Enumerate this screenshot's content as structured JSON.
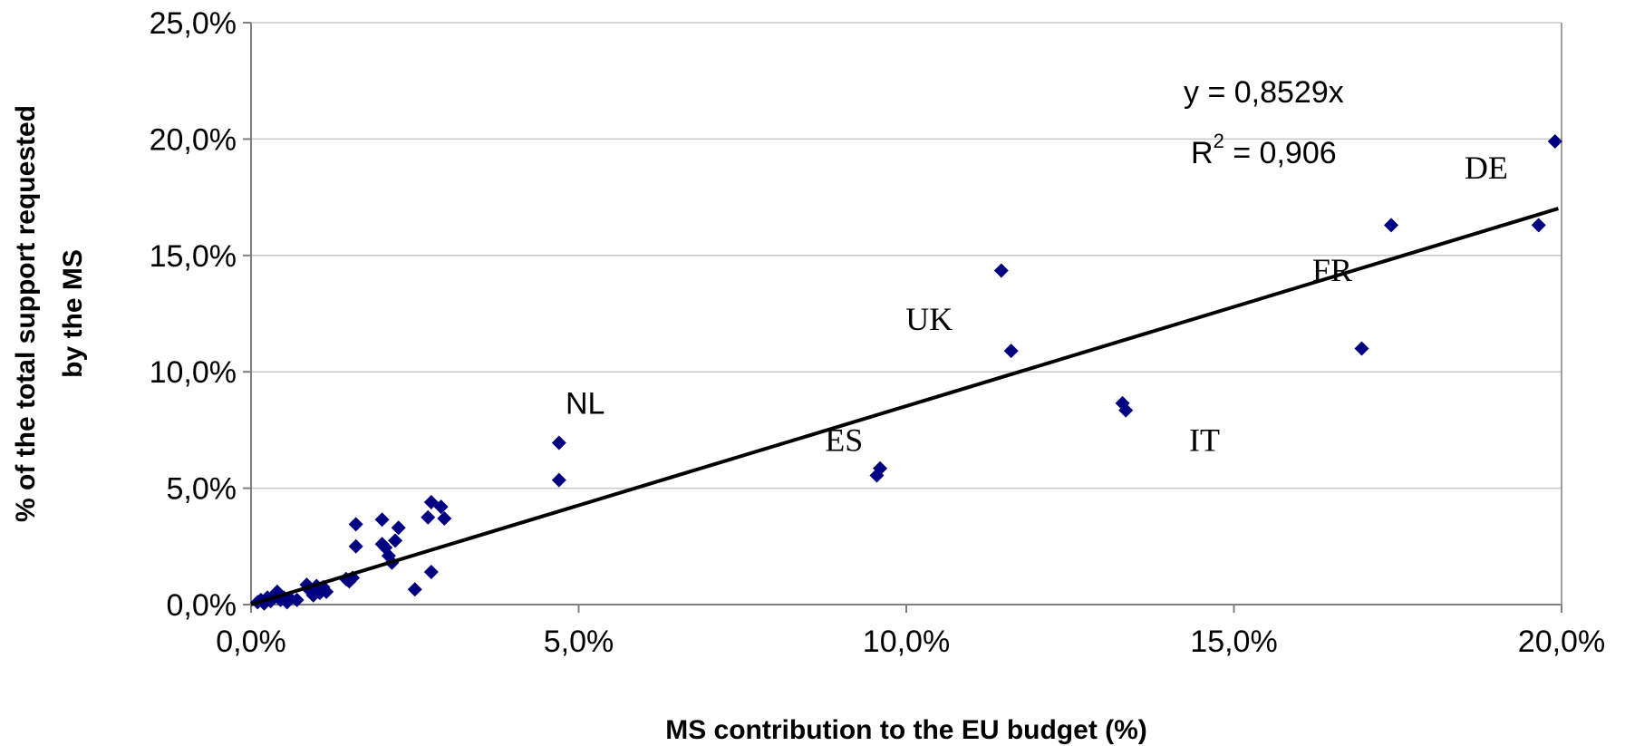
{
  "chart_data": {
    "type": "scatter",
    "title": "",
    "xlabel": "MS contribution to the EU budget (%)",
    "ylabel_lines": [
      "% of the  total support requested",
      "by the MS"
    ],
    "xlim": [
      0,
      20
    ],
    "ylim": [
      0,
      25
    ],
    "x_ticks": [
      {
        "value": 0,
        "label": "0,0%"
      },
      {
        "value": 5,
        "label": "5,0%"
      },
      {
        "value": 10,
        "label": "10,0%"
      },
      {
        "value": 15,
        "label": "15,0%"
      },
      {
        "value": 20,
        "label": "20,0%"
      }
    ],
    "y_ticks": [
      {
        "value": 0,
        "label": "0,0%"
      },
      {
        "value": 5,
        "label": "5,0%"
      },
      {
        "value": 10,
        "label": "10,0%"
      },
      {
        "value": 15,
        "label": "15,0%"
      },
      {
        "value": 20,
        "label": "20,0%"
      },
      {
        "value": 25,
        "label": "25,0%"
      }
    ],
    "grid": "horizontal",
    "marker_color": "#000080",
    "trendline": {
      "slope": 0.8529,
      "equation": "y = 0,8529x",
      "r2_prefix": "R",
      "r2_sup": "2",
      "r2_value": " = 0,906",
      "color": "#000000"
    },
    "points": [
      [
        0.1,
        0.1
      ],
      [
        0.15,
        0.2
      ],
      [
        0.2,
        0.05
      ],
      [
        0.25,
        0.3
      ],
      [
        0.3,
        0.15
      ],
      [
        0.35,
        0.4
      ],
      [
        0.4,
        0.55
      ],
      [
        0.45,
        0.2
      ],
      [
        0.5,
        0.3
      ],
      [
        0.55,
        0.1
      ],
      [
        0.6,
        0.25
      ],
      [
        0.7,
        0.2
      ],
      [
        0.85,
        0.85
      ],
      [
        0.9,
        0.6
      ],
      [
        0.95,
        0.4
      ],
      [
        1.0,
        0.8
      ],
      [
        1.05,
        0.5
      ],
      [
        1.1,
        0.75
      ],
      [
        1.15,
        0.55
      ],
      [
        1.45,
        1.1
      ],
      [
        1.5,
        1.0
      ],
      [
        1.55,
        1.15
      ],
      [
        1.6,
        2.5
      ],
      [
        1.6,
        3.45
      ],
      [
        2.0,
        3.65
      ],
      [
        2.0,
        2.6
      ],
      [
        2.05,
        2.45
      ],
      [
        2.1,
        2.1
      ],
      [
        2.15,
        1.8
      ],
      [
        2.2,
        2.75
      ],
      [
        2.25,
        3.3
      ],
      [
        2.5,
        0.65
      ],
      [
        2.7,
        3.75
      ],
      [
        2.75,
        4.4
      ],
      [
        2.75,
        1.4
      ],
      [
        2.9,
        4.2
      ],
      [
        2.95,
        3.7
      ],
      [
        4.7,
        6.95
      ],
      [
        4.7,
        5.35
      ],
      [
        9.55,
        5.55
      ],
      [
        9.6,
        5.85
      ],
      [
        11.45,
        14.35
      ],
      [
        11.6,
        10.9
      ],
      [
        13.3,
        8.65
      ],
      [
        13.35,
        8.35
      ],
      [
        16.95,
        11.0
      ],
      [
        17.4,
        16.3
      ],
      [
        19.65,
        16.3
      ],
      [
        19.9,
        19.9
      ]
    ],
    "annotations": [
      {
        "label": "NL",
        "x": 5.1,
        "y": 8.2,
        "style": "sans"
      },
      {
        "label": "ES",
        "x": 9.05,
        "y": 6.6,
        "style": "serif"
      },
      {
        "label": "UK",
        "x": 10.35,
        "y": 11.8,
        "style": "serif"
      },
      {
        "label": "IT",
        "x": 14.55,
        "y": 6.6,
        "style": "serif"
      },
      {
        "label": "FR",
        "x": 16.5,
        "y": 13.9,
        "style": "serif"
      },
      {
        "label": "DE",
        "x": 18.85,
        "y": 18.3,
        "style": "serif"
      }
    ]
  }
}
